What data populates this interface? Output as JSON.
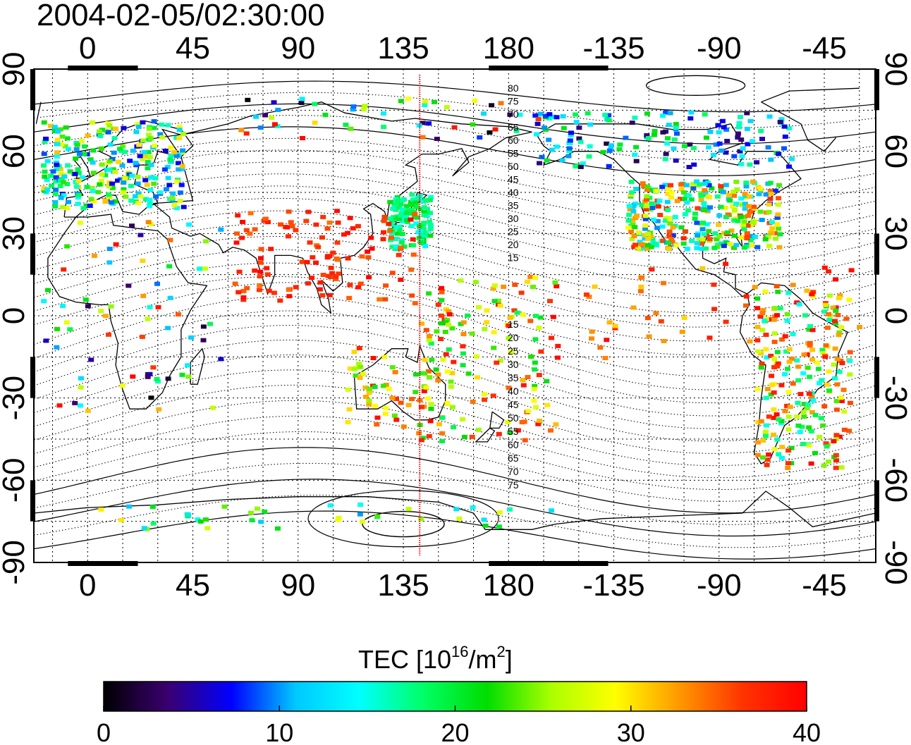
{
  "title": "2004-02-05/02:30:00",
  "map": {
    "x_ticks": [
      "0",
      "45",
      "90",
      "135",
      "180",
      "-135",
      "-90",
      "-45"
    ],
    "y_ticks": [
      "90",
      "60",
      "30",
      "0",
      "-30",
      "-60",
      "-90"
    ],
    "local_time_meridian_lon": 142,
    "contour_labels_north": [
      "80",
      "75",
      "70",
      "65",
      "60",
      "55",
      "50",
      "45",
      "40",
      "35",
      "30",
      "25",
      "20",
      "15"
    ],
    "contour_labels_south": [
      "15",
      "20",
      "25",
      "30",
      "35",
      "40",
      "45",
      "50",
      "55",
      "60",
      "65",
      "70",
      "75"
    ]
  },
  "colorbar": {
    "label_prefix": "TEC  [10",
    "label_exp1": "16",
    "label_mid": "/m",
    "label_exp2": "2",
    "label_suffix": "]",
    "min": 0,
    "max": 40,
    "ticks": [
      "0",
      "10",
      "20",
      "30",
      "40"
    ],
    "colors": [
      "#000000",
      "#3a0070",
      "#0000ff",
      "#00c8ff",
      "#00ffff",
      "#00ff66",
      "#00dd00",
      "#aaff00",
      "#ffff00",
      "#ff9900",
      "#ff3300",
      "#ff0000"
    ]
  }
}
